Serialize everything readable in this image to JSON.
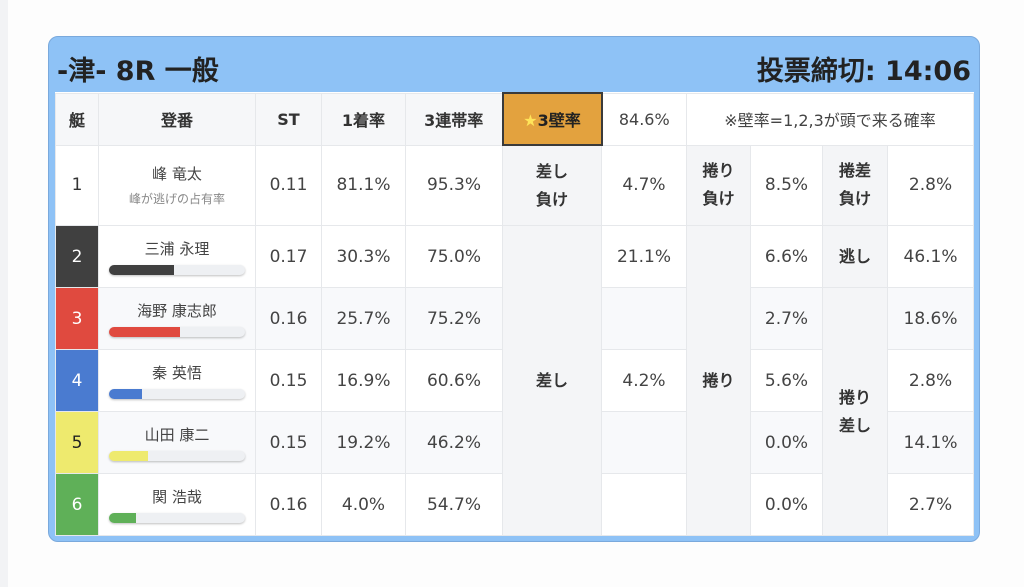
{
  "header": {
    "title": "-津- 8R 一般",
    "deadline": "投票締切: 14:06"
  },
  "columns": {
    "boat": "艇",
    "name": "登番",
    "st": "ST",
    "win": "1着率",
    "top3": "3連帯率",
    "wall_star": "★",
    "wall_text": "3壁率",
    "wall_value": "84.6%",
    "note": "※壁率=1,2,3が頭で来る確率"
  },
  "labels": {
    "sashi_make_1": "差し",
    "sashi_make_2": "負け",
    "makuri_make_1": "捲り",
    "makuri_make_2": "負け",
    "makurizashi_make_1": "捲差",
    "makurizashi_make_2": "負け",
    "sashi": "差し",
    "makuri": "捲り",
    "nige": "逃し",
    "makurizashi_1": "捲り",
    "makurizashi_2": "差し"
  },
  "rows": [
    {
      "boat": "1",
      "name": "峰 竜太",
      "sub": "峰が逃げの占有率",
      "st": "0.11",
      "win": "81.1%",
      "top3": "95.3%",
      "c8": "4.7%",
      "c10": "8.5%",
      "c12": "2.8%",
      "color": "#ffffff",
      "text": "#333333"
    },
    {
      "boat": "2",
      "name": "三浦 永理",
      "bar": 48,
      "st": "0.17",
      "win": "30.3%",
      "top3": "75.0%",
      "c8": "21.1%",
      "c10": "6.6%",
      "c12": "46.1%",
      "color": "#404040",
      "text": "#ffffff"
    },
    {
      "boat": "3",
      "name": "海野 康志郎",
      "bar": 52,
      "st": "0.16",
      "win": "25.7%",
      "top3": "75.2%",
      "c8": "",
      "c10": "2.7%",
      "c12": "18.6%",
      "color": "#e04a3f",
      "text": "#ffffff"
    },
    {
      "boat": "4",
      "name": "秦 英悟",
      "bar": 24,
      "st": "0.15",
      "win": "16.9%",
      "top3": "60.6%",
      "c8": "4.2%",
      "c10": "5.6%",
      "c12": "2.8%",
      "color": "#4a7bd0",
      "text": "#ffffff"
    },
    {
      "boat": "5",
      "name": "山田 康二",
      "bar": 29,
      "st": "0.15",
      "win": "19.2%",
      "top3": "46.2%",
      "c8": "",
      "c10": "0.0%",
      "c12": "14.1%",
      "color": "#eeea6e",
      "text": "#222222"
    },
    {
      "boat": "6",
      "name": "関 浩哉",
      "bar": 20,
      "st": "0.16",
      "win": "4.0%",
      "top3": "54.7%",
      "c8": "",
      "c10": "0.0%",
      "c12": "2.7%",
      "color": "#5fb058",
      "text": "#ffffff"
    }
  ]
}
